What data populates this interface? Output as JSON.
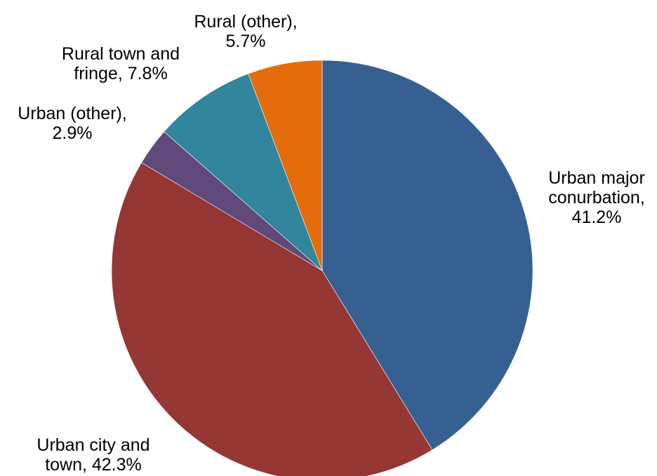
{
  "chart_data": {
    "type": "pie",
    "title": "",
    "start_angle_deg": 0,
    "direction": "clockwise",
    "slices": [
      {
        "label": "Urban major conurbation",
        "value": 41.2,
        "display": "41.2%",
        "color": "#376092",
        "label_lines": [
          "Urban major",
          "conurbation,",
          "41.2%"
        ]
      },
      {
        "label": "Urban city and town",
        "value": 42.3,
        "display": "42.3%",
        "color": "#953735",
        "label_lines": [
          "Urban city and",
          "town, 42.3%"
        ]
      },
      {
        "label": "Urban (other)",
        "value": 2.9,
        "display": "2.9%",
        "color": "#604a7b",
        "label_lines": [
          "Urban (other),",
          "2.9%"
        ]
      },
      {
        "label": "Rural town and fringe",
        "value": 7.8,
        "display": "7.8%",
        "color": "#31859c",
        "label_lines": [
          "Rural town and",
          "fringe, 7.8%"
        ]
      },
      {
        "label": "Rural (other)",
        "value": 5.7,
        "display": "5.7%",
        "color": "#e46c0a",
        "label_lines": [
          "Rural (other),",
          "5.7%"
        ]
      }
    ]
  }
}
